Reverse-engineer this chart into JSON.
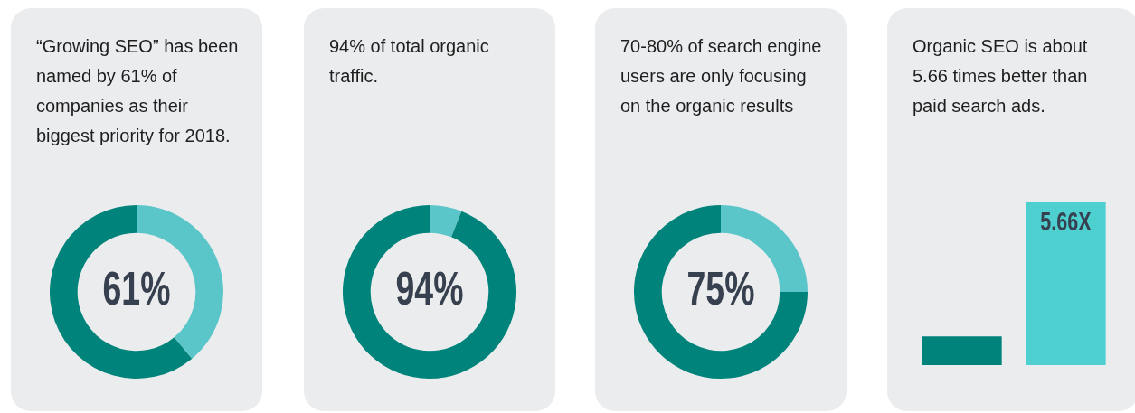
{
  "chart_data": [
    {
      "type": "donut",
      "title": "“Growing SEO” has been named by 61% of companies as their biggest priority for 2018.",
      "categories": [
        null,
        null
      ],
      "values": [
        39,
        61
      ],
      "colors": [
        "#5bc6c9",
        "#00837a"
      ],
      "annotations": [
        "61%"
      ]
    },
    {
      "type": "donut",
      "title": "94% of total organic traffic.",
      "categories": [
        null,
        null
      ],
      "values": [
        6,
        94
      ],
      "colors": [
        "#5bc6c9",
        "#00837a"
      ],
      "annotations": [
        "94%"
      ]
    },
    {
      "type": "donut",
      "title": "70-80% of search engine users are only focusing on the organic results",
      "categories": [
        null,
        null
      ],
      "values": [
        25,
        75
      ],
      "colors": [
        "#5bc6c9",
        "#00837a"
      ],
      "annotations": [
        "75%"
      ]
    },
    {
      "type": "bar",
      "title": "Organic SEO is about 5.66 times better than paid search ads.",
      "categories": [
        null,
        null
      ],
      "values": [
        1,
        5.66
      ],
      "tick_labels": false,
      "colors": [
        "#00837a",
        "#4ecfd0"
      ],
      "value_labels": [
        null,
        "5.66X"
      ]
    }
  ]
}
